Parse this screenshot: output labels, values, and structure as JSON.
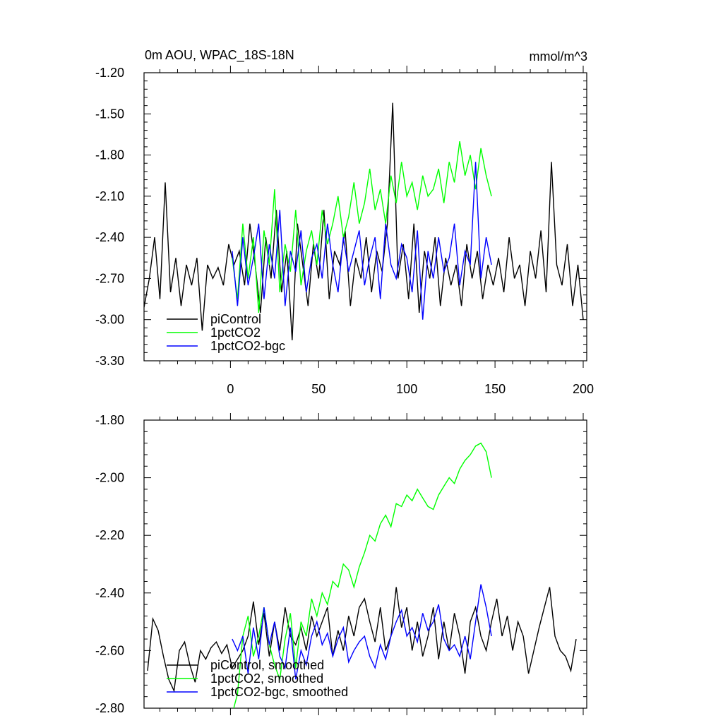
{
  "figure": {
    "title": "0m AOU, WPAC_18S-18N",
    "units": "mmol/m^3"
  },
  "chart_data": [
    {
      "type": "line",
      "title": "0m AOU, WPAC_18S-18N",
      "units_label": "mmol/m^3",
      "xlabel": "",
      "ylabel": "",
      "xlim": [
        -49,
        202
      ],
      "ylim": [
        -3.3,
        -1.2
      ],
      "x_ticks": [
        0,
        50,
        100,
        150,
        200
      ],
      "x_tick_labels": [
        "0",
        "50",
        "100",
        "150",
        "200"
      ],
      "y_ticks": [
        -3.3,
        -3.0,
        -2.7,
        -2.4,
        -2.1,
        -1.8,
        -1.5,
        -1.2
      ],
      "y_tick_labels": [
        "-3.30",
        "-3.00",
        "-2.70",
        "-2.40",
        "-2.10",
        "-1.80",
        "-1.50",
        "-1.20"
      ],
      "grid": false,
      "legend_position": "bottom-left",
      "series": [
        {
          "name": "piControl",
          "color": "#000000",
          "x": [
            -49,
            -46,
            -43,
            -40,
            -37,
            -34,
            -31,
            -28,
            -25,
            -22,
            -19,
            -16,
            -13,
            -10,
            -7,
            -4,
            -1,
            2,
            5,
            8,
            11,
            14,
            17,
            20,
            23,
            26,
            29,
            32,
            35,
            38,
            41,
            44,
            47,
            50,
            53,
            56,
            59,
            62,
            65,
            68,
            71,
            74,
            77,
            80,
            83,
            86,
            89,
            92,
            95,
            98,
            101,
            104,
            107,
            110,
            113,
            116,
            119,
            122,
            125,
            128,
            131,
            134,
            137,
            140,
            143,
            146,
            149,
            152,
            155,
            158,
            161,
            164,
            167,
            170,
            173,
            176,
            179,
            182,
            185,
            188,
            191,
            194,
            197,
            200
          ],
          "values": [
            -2.91,
            -2.7,
            -2.4,
            -2.85,
            -2.0,
            -2.8,
            -2.55,
            -2.9,
            -2.6,
            -2.75,
            -2.55,
            -3.08,
            -2.6,
            -2.7,
            -2.62,
            -2.75,
            -2.45,
            -2.6,
            -2.5,
            -2.75,
            -2.3,
            -2.6,
            -2.95,
            -2.4,
            -2.7,
            -2.2,
            -2.8,
            -2.5,
            -3.15,
            -2.3,
            -2.6,
            -2.9,
            -2.45,
            -2.7,
            -2.2,
            -2.85,
            -2.5,
            -2.6,
            -2.35,
            -2.9,
            -2.55,
            -2.7,
            -2.4,
            -2.8,
            -2.5,
            -2.65,
            -2.3,
            -1.42,
            -2.7,
            -2.45,
            -2.85,
            -2.3,
            -2.95,
            -2.5,
            -2.7,
            -2.4,
            -2.9,
            -2.55,
            -2.75,
            -2.6,
            -2.9,
            -2.45,
            -2.7,
            -2.5,
            -2.85,
            -2.6,
            -2.75,
            -2.55,
            -2.8,
            -2.4,
            -2.7,
            -2.6,
            -2.9,
            -2.5,
            -2.7,
            -2.35,
            -2.8,
            -1.85,
            -2.6,
            -2.75,
            -2.45,
            -2.9,
            -2.6,
            -3.0
          ]
        },
        {
          "name": "1pctCO2",
          "color": "#00ff00",
          "x": [
            1,
            4,
            7,
            10,
            13,
            16,
            19,
            22,
            25,
            28,
            31,
            34,
            37,
            40,
            43,
            46,
            49,
            52,
            55,
            58,
            61,
            64,
            67,
            70,
            73,
            76,
            79,
            82,
            85,
            88,
            91,
            94,
            97,
            100,
            103,
            106,
            109,
            112,
            115,
            118,
            121,
            124,
            127,
            130,
            133,
            136,
            139,
            142,
            145,
            148
          ],
          "values": [
            -2.55,
            -2.85,
            -2.3,
            -2.7,
            -2.4,
            -2.95,
            -2.35,
            -2.6,
            -2.05,
            -2.8,
            -2.45,
            -2.65,
            -2.2,
            -2.75,
            -2.5,
            -2.35,
            -2.6,
            -2.2,
            -2.45,
            -2.3,
            -2.1,
            -2.4,
            -2.25,
            -2.0,
            -2.3,
            -2.15,
            -1.9,
            -2.2,
            -2.05,
            -2.3,
            -1.95,
            -2.15,
            -1.85,
            -2.1,
            -2.0,
            -2.2,
            -1.95,
            -2.1,
            -2.05,
            -1.9,
            -2.15,
            -1.85,
            -2.0,
            -1.7,
            -1.95,
            -1.8,
            -2.05,
            -1.75,
            -1.95,
            -2.1
          ]
        },
        {
          "name": "1pctCO2-bgc",
          "color": "#0000ff",
          "x": [
            1,
            4,
            7,
            10,
            13,
            16,
            19,
            22,
            25,
            28,
            31,
            34,
            37,
            40,
            43,
            46,
            49,
            52,
            55,
            58,
            61,
            64,
            67,
            70,
            73,
            76,
            79,
            82,
            85,
            88,
            91,
            94,
            97,
            100,
            103,
            106,
            109,
            112,
            115,
            118,
            121,
            124,
            127,
            130,
            133,
            136,
            139,
            142,
            145,
            148
          ],
          "values": [
            -2.5,
            -2.9,
            -2.4,
            -2.75,
            -2.55,
            -2.3,
            -2.85,
            -2.45,
            -2.7,
            -2.2,
            -2.9,
            -2.5,
            -2.65,
            -2.35,
            -2.8,
            -2.55,
            -2.45,
            -2.7,
            -2.3,
            -2.6,
            -2.8,
            -2.4,
            -2.65,
            -2.5,
            -2.35,
            -2.75,
            -2.55,
            -2.4,
            -2.85,
            -2.3,
            -2.6,
            -2.7,
            -2.45,
            -2.55,
            -2.8,
            -2.35,
            -3.0,
            -2.5,
            -2.7,
            -2.4,
            -2.65,
            -2.55,
            -2.3,
            -2.75,
            -2.5,
            -2.6,
            -1.85,
            -2.7,
            -2.4,
            -2.6
          ]
        }
      ]
    },
    {
      "type": "line",
      "title": "",
      "xlabel": "",
      "ylabel": "",
      "xlim": [
        -49,
        202
      ],
      "ylim": [
        -2.8,
        -1.8
      ],
      "x_ticks": [
        0,
        50,
        100,
        150,
        200
      ],
      "x_tick_labels": [],
      "y_ticks": [
        -2.8,
        -2.6,
        -2.4,
        -2.2,
        -2.0,
        -1.8
      ],
      "y_tick_labels": [
        "-2.80",
        "-2.60",
        "-2.40",
        "-2.20",
        "-2.00",
        "-1.80"
      ],
      "grid": false,
      "legend_position": "bottom-left",
      "series": [
        {
          "name": "piControl, smoothed",
          "color": "#000000",
          "x": [
            -47,
            -44,
            -41,
            -38,
            -35,
            -32,
            -29,
            -26,
            -23,
            -20,
            -17,
            -14,
            -11,
            -8,
            -5,
            -2,
            1,
            4,
            7,
            10,
            13,
            16,
            19,
            22,
            25,
            28,
            31,
            34,
            37,
            40,
            43,
            46,
            49,
            52,
            55,
            58,
            61,
            64,
            67,
            70,
            73,
            76,
            79,
            82,
            85,
            88,
            91,
            94,
            97,
            100,
            103,
            106,
            109,
            112,
            115,
            118,
            121,
            124,
            127,
            130,
            133,
            136,
            139,
            142,
            145,
            148,
            151,
            154,
            157,
            160,
            163,
            166,
            169,
            172,
            175,
            178,
            181,
            184,
            187,
            190,
            193,
            196
          ],
          "values": [
            -2.67,
            -2.49,
            -2.53,
            -2.62,
            -2.7,
            -2.74,
            -2.6,
            -2.57,
            -2.65,
            -2.71,
            -2.6,
            -2.63,
            -2.59,
            -2.57,
            -2.61,
            -2.58,
            -2.66,
            -2.63,
            -2.6,
            -2.55,
            -2.43,
            -2.58,
            -2.47,
            -2.62,
            -2.5,
            -2.6,
            -2.45,
            -2.55,
            -2.58,
            -2.52,
            -2.6,
            -2.48,
            -2.55,
            -2.5,
            -2.45,
            -2.62,
            -2.53,
            -2.6,
            -2.48,
            -2.55,
            -2.45,
            -2.42,
            -2.5,
            -2.57,
            -2.45,
            -2.6,
            -2.55,
            -2.38,
            -2.52,
            -2.45,
            -2.6,
            -2.5,
            -2.62,
            -2.55,
            -2.45,
            -2.63,
            -2.5,
            -2.6,
            -2.47,
            -2.55,
            -2.68,
            -2.5,
            -2.45,
            -2.55,
            -2.6,
            -2.5,
            -2.42,
            -2.55,
            -2.48,
            -2.6,
            -2.5,
            -2.55,
            -2.68,
            -2.6,
            -2.52,
            -2.45,
            -2.38,
            -2.55,
            -2.6,
            -2.62,
            -2.67,
            -2.56
          ]
        },
        {
          "name": "1pctCO2, smoothed",
          "color": "#00ff00",
          "x": [
            1,
            4,
            7,
            10,
            13,
            16,
            19,
            22,
            25,
            28,
            31,
            34,
            37,
            40,
            43,
            46,
            49,
            52,
            55,
            58,
            61,
            64,
            67,
            70,
            73,
            76,
            79,
            82,
            85,
            88,
            91,
            94,
            97,
            100,
            103,
            106,
            109,
            112,
            115,
            118,
            121,
            124,
            127,
            130,
            133,
            136,
            139,
            142,
            145,
            148
          ],
          "values": [
            -2.82,
            -2.75,
            -2.55,
            -2.48,
            -2.62,
            -2.55,
            -2.45,
            -2.58,
            -2.65,
            -2.7,
            -2.56,
            -2.47,
            -2.66,
            -2.5,
            -2.55,
            -2.42,
            -2.48,
            -2.4,
            -2.44,
            -2.36,
            -2.38,
            -2.3,
            -2.32,
            -2.38,
            -2.31,
            -2.26,
            -2.2,
            -2.22,
            -2.16,
            -2.13,
            -2.17,
            -2.09,
            -2.1,
            -2.06,
            -2.08,
            -2.04,
            -2.07,
            -2.1,
            -2.11,
            -2.06,
            -2.03,
            -2.0,
            -2.02,
            -1.97,
            -1.94,
            -1.92,
            -1.89,
            -1.88,
            -1.91,
            -2.0
          ]
        },
        {
          "name": "1pctCO2-bgc, smoothed",
          "color": "#0000ff",
          "x": [
            1,
            4,
            7,
            10,
            13,
            16,
            19,
            22,
            25,
            28,
            31,
            34,
            37,
            40,
            43,
            46,
            49,
            52,
            55,
            58,
            61,
            64,
            67,
            70,
            73,
            76,
            79,
            82,
            85,
            88,
            91,
            94,
            97,
            100,
            103,
            106,
            109,
            112,
            115,
            118,
            121,
            124,
            127,
            130,
            133,
            136,
            139,
            142,
            145,
            148
          ],
          "values": [
            -2.56,
            -2.6,
            -2.55,
            -2.68,
            -2.52,
            -2.63,
            -2.45,
            -2.58,
            -2.5,
            -2.62,
            -2.66,
            -2.52,
            -2.7,
            -2.6,
            -2.65,
            -2.55,
            -2.5,
            -2.58,
            -2.54,
            -2.62,
            -2.56,
            -2.52,
            -2.64,
            -2.6,
            -2.57,
            -2.55,
            -2.62,
            -2.66,
            -2.58,
            -2.63,
            -2.55,
            -2.5,
            -2.46,
            -2.55,
            -2.52,
            -2.57,
            -2.47,
            -2.53,
            -2.5,
            -2.44,
            -2.56,
            -2.6,
            -2.58,
            -2.62,
            -2.55,
            -2.63,
            -2.5,
            -2.37,
            -2.45,
            -2.55
          ]
        }
      ]
    }
  ]
}
